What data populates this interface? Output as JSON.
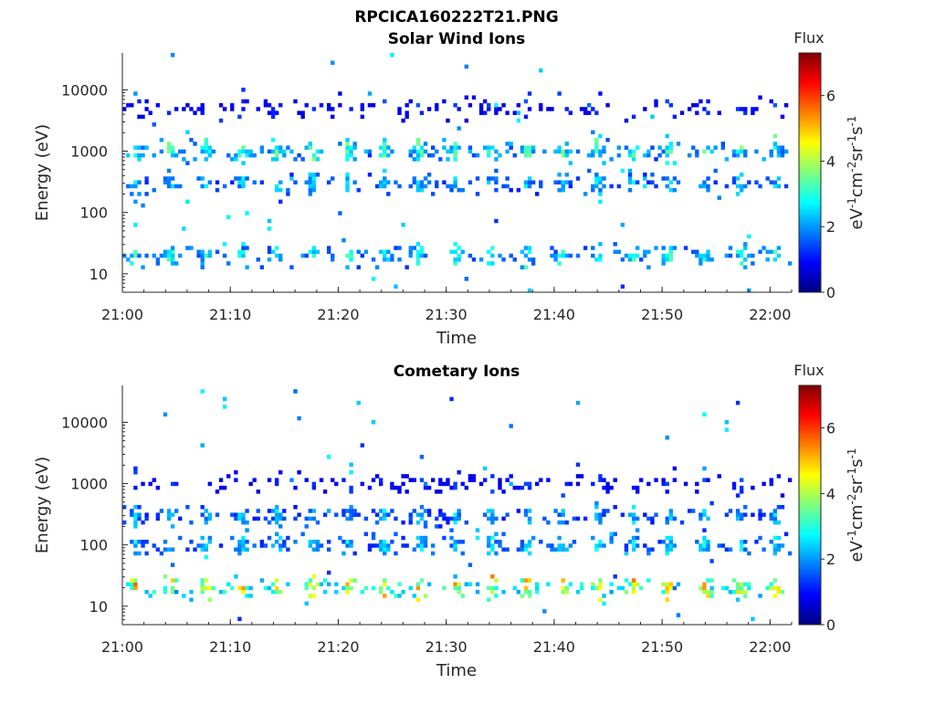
{
  "figure": {
    "title": "RPCICA160222T21.PNG"
  },
  "colormap": [
    "#00007f",
    "#0000ff",
    "#007fff",
    "#00ffff",
    "#7fff7f",
    "#ffff00",
    "#ff7f00",
    "#ff0000",
    "#7f0000"
  ],
  "chart_data": [
    {
      "type": "heatmap",
      "title": "Solar Wind Ions",
      "xlabel": "Time",
      "ylabel": "Energy (eV)",
      "xlim": [
        "21:00",
        "22:02"
      ],
      "ylim": [
        5,
        40000
      ],
      "yscale": "log",
      "xticks": [
        "21:00",
        "21:10",
        "21:20",
        "21:30",
        "21:40",
        "21:50",
        "22:00"
      ],
      "yticks": [
        10,
        100,
        1000,
        10000
      ],
      "ytick_labels": [
        "10",
        "100",
        "1000",
        "10000"
      ],
      "colorbar": {
        "label": "Flux",
        "units": "eV-1cm-2sr-1s-1",
        "range": [
          0,
          7.3
        ],
        "ticks": [
          0,
          2,
          4,
          6
        ]
      },
      "dominant_bands": [
        {
          "energy_eV": 1000,
          "flux": 3.5,
          "pattern": "periodic bursts ~every 3 min"
        },
        {
          "energy_eV": 300,
          "flux": 2.6,
          "pattern": "periodic bursts"
        },
        {
          "energy_eV": 20,
          "flux": 3.2,
          "pattern": "sparse bursts"
        },
        {
          "energy_eV": 5000,
          "flux": 1.5,
          "pattern": "scattered points"
        }
      ],
      "burst_period_min": 3.3
    },
    {
      "type": "heatmap",
      "title": "Cometary Ions",
      "xlabel": "Time",
      "ylabel": "Energy (eV)",
      "xlim": [
        "21:00",
        "22:02"
      ],
      "ylim": [
        5,
        40000
      ],
      "yscale": "log",
      "xticks": [
        "21:00",
        "21:10",
        "21:20",
        "21:30",
        "21:40",
        "21:50",
        "22:00"
      ],
      "yticks": [
        10,
        100,
        1000,
        10000
      ],
      "ytick_labels": [
        "10",
        "100",
        "1000",
        "10000"
      ],
      "colorbar": {
        "label": "Flux",
        "units": "eV-1cm-2sr-1s-1",
        "range": [
          0,
          7.3
        ],
        "ticks": [
          0,
          2,
          4,
          6
        ]
      },
      "dominant_bands": [
        {
          "energy_eV": 20,
          "flux": 5.2,
          "pattern": "strong periodic bursts ~every 3 min"
        },
        {
          "energy_eV": 100,
          "flux": 2.8,
          "pattern": "periodic bursts"
        },
        {
          "energy_eV": 300,
          "flux": 2.5,
          "pattern": "periodic bursts"
        },
        {
          "energy_eV": 1000,
          "flux": 1.5,
          "pattern": "scattered points"
        }
      ],
      "burst_period_min": 3.3
    }
  ]
}
